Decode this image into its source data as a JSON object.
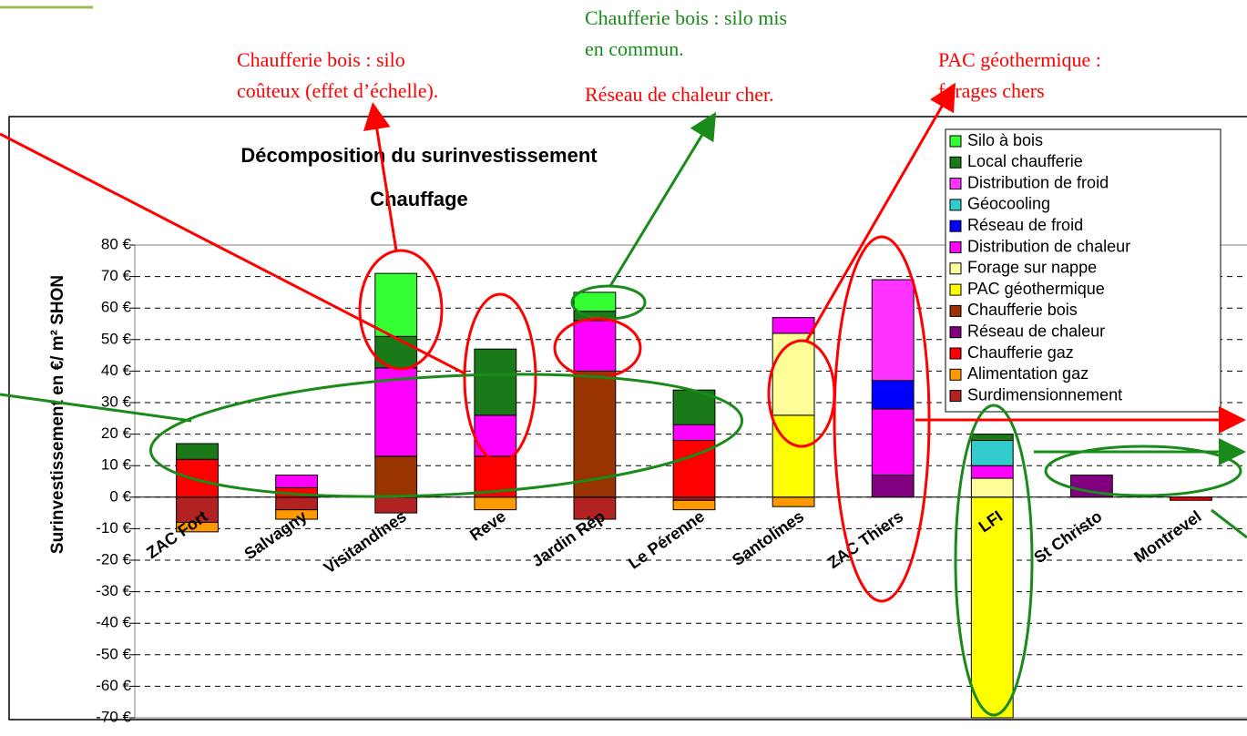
{
  "chart_data": {
    "type": "stacked_bar",
    "title_lines": [
      "Décomposition du surinvestissement",
      "Chauffage"
    ],
    "y_axis_label": "Surinvestissement en €/ m² SHON",
    "categories": [
      "ZAC Fort",
      "Salvagny",
      "Visitandines",
      "Reve",
      "Jardin Rép",
      "Le Pérenne",
      "Santolines",
      "ZAC Thiers",
      "LFI",
      "St Christo",
      "Montrevel"
    ],
    "series": [
      {
        "name": "Silo à bois",
        "color": "#33ff33",
        "values": [
          0,
          0,
          20,
          0,
          6,
          0,
          0,
          0,
          0,
          0,
          0
        ]
      },
      {
        "name": "Local chaufferie",
        "color": "#1a7a1a",
        "values": [
          5,
          0,
          10,
          21,
          3,
          11,
          0,
          0,
          2,
          0,
          0
        ]
      },
      {
        "name": "Distribution de froid",
        "color": "#ff33ff",
        "values": [
          0,
          0,
          0,
          0,
          0,
          0,
          0,
          32,
          0,
          0,
          0
        ]
      },
      {
        "name": "Géocooling",
        "color": "#33cccc",
        "values": [
          0,
          0,
          0,
          0,
          0,
          0,
          0,
          0,
          8,
          0,
          0
        ]
      },
      {
        "name": "Réseau de froid",
        "color": "#0000ff",
        "values": [
          0,
          0,
          0,
          0,
          0,
          0,
          0,
          9,
          0,
          0,
          0
        ]
      },
      {
        "name": "Distribution de chaleur",
        "color": "#ff00ff",
        "values": [
          0,
          4,
          28,
          13,
          16,
          5,
          5,
          21,
          4,
          0,
          0
        ]
      },
      {
        "name": "Forage sur nappe",
        "color": "#ffff99",
        "values": [
          0,
          0,
          0,
          0,
          0,
          0,
          26,
          0,
          6,
          0,
          0
        ]
      },
      {
        "name": "PAC géothermique",
        "color": "#ffff00",
        "values": [
          0,
          0,
          0,
          0,
          0,
          0,
          26,
          0,
          -70,
          0,
          0
        ]
      },
      {
        "name": "Chaufferie bois",
        "color": "#993300",
        "values": [
          0,
          0,
          13,
          0,
          40,
          0,
          0,
          0,
          0,
          0,
          0
        ]
      },
      {
        "name": "Réseau de chaleur",
        "color": "#800080",
        "values": [
          0,
          0,
          0,
          0,
          0,
          0,
          0,
          7,
          0,
          7,
          0
        ]
      },
      {
        "name": "Chaufferie gaz",
        "color": "#ff0000",
        "values": [
          12,
          3,
          0,
          13,
          0,
          18,
          0,
          0,
          0,
          0,
          -1
        ]
      },
      {
        "name": "Alimentation gaz",
        "color": "#ff9900",
        "values": [
          -3,
          -3,
          0,
          -4,
          0,
          -3,
          -3,
          0,
          0,
          0,
          0
        ]
      },
      {
        "name": "Surdimensionnement",
        "color": "#b22222",
        "values": [
          -8,
          -4,
          -5,
          0,
          -7,
          -1,
          0,
          0,
          0,
          0,
          0
        ]
      }
    ],
    "ylim": [
      -70,
      80
    ],
    "yticks": [
      {
        "value": -70,
        "label": "-70 €"
      },
      {
        "value": -60,
        "label": "-60 €"
      },
      {
        "value": -50,
        "label": "-50 €"
      },
      {
        "value": -40,
        "label": "-40 €"
      },
      {
        "value": -30,
        "label": "-30 €"
      },
      {
        "value": -20,
        "label": "-20 €"
      },
      {
        "value": -10,
        "label": "-10 €"
      },
      {
        "value": 0,
        "label": "0 €"
      },
      {
        "value": 10,
        "label": "10 €"
      },
      {
        "value": 20,
        "label": "20 €"
      },
      {
        "value": 30,
        "label": "30 €"
      },
      {
        "value": 40,
        "label": "40 €"
      },
      {
        "value": 50,
        "label": "50 €"
      },
      {
        "value": 60,
        "label": "60 €"
      },
      {
        "value": 70,
        "label": "70 €"
      },
      {
        "value": 80,
        "label": "80 €"
      }
    ],
    "grid": true,
    "legend": "top-right",
    "annotations": [
      {
        "lines": [
          "Chaufferie bois : silo",
          "coûteux (effet d’échelle)."
        ],
        "color": "#ff0000"
      },
      {
        "lines": [
          "Chaufferie bois : silo mis",
          "en commun."
        ],
        "color": "#1a8a1a"
      },
      {
        "lines": [
          "Réseau de chaleur cher."
        ],
        "color": "#ff0000"
      },
      {
        "lines": [
          "PAC géothermique :",
          "forages chers"
        ],
        "color": "#ff0000"
      }
    ]
  }
}
